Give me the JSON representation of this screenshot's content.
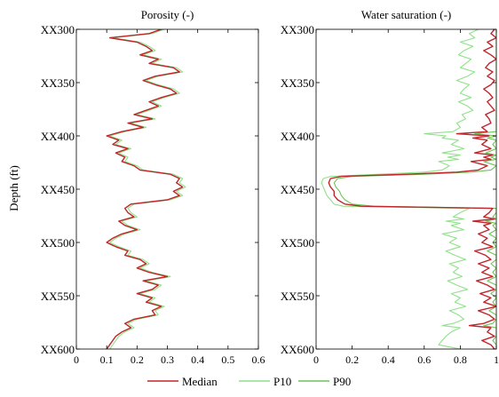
{
  "ylabel": "Depth (ft)",
  "legend": {
    "items": [
      {
        "name": "Median",
        "color": "#c0262c"
      },
      {
        "name": "P10",
        "color": "#8fe18a"
      },
      {
        "name": "P90",
        "color": "#6fc45a"
      }
    ],
    "placement": "bottom-center"
  },
  "chart_data": [
    {
      "type": "line",
      "title": "Porosity (-)",
      "xlabel": "",
      "ylabel": "Depth (ft)",
      "xlim": [
        0,
        0.6
      ],
      "ylim": [
        600,
        300
      ],
      "xticks": [
        0,
        0.1,
        0.2,
        0.3,
        0.4,
        0.5,
        0.6
      ],
      "xtick_labels": [
        "0",
        "0.1",
        "0.2",
        "0.3",
        "0.4",
        "0.5",
        "0.6"
      ],
      "yticks": [
        300,
        350,
        400,
        450,
        500,
        550,
        600
      ],
      "ytick_labels": [
        "XX300",
        "XX350",
        "XX400",
        "XX450",
        "XX500",
        "XX550",
        "XX600"
      ],
      "grid": false,
      "depth": [
        300,
        304,
        308,
        312,
        316,
        320,
        324,
        328,
        332,
        336,
        340,
        344,
        348,
        352,
        356,
        360,
        364,
        368,
        372,
        376,
        380,
        384,
        388,
        392,
        396,
        400,
        404,
        408,
        412,
        416,
        420,
        424,
        428,
        432,
        436,
        440,
        444,
        448,
        452,
        456,
        460,
        464,
        468,
        472,
        476,
        480,
        484,
        488,
        492,
        496,
        500,
        504,
        508,
        512,
        516,
        520,
        524,
        528,
        532,
        536,
        540,
        544,
        548,
        552,
        556,
        560,
        564,
        568,
        572,
        576,
        580,
        584,
        588,
        592,
        596,
        600
      ],
      "series": [
        {
          "name": "Median",
          "color": "#c0262c",
          "values": [
            0.28,
            0.24,
            0.11,
            0.2,
            0.23,
            0.25,
            0.21,
            0.27,
            0.24,
            0.32,
            0.34,
            0.26,
            0.22,
            0.26,
            0.31,
            0.33,
            0.28,
            0.24,
            0.27,
            0.23,
            0.19,
            0.25,
            0.17,
            0.22,
            0.15,
            0.1,
            0.14,
            0.12,
            0.17,
            0.13,
            0.16,
            0.15,
            0.19,
            0.21,
            0.31,
            0.34,
            0.33,
            0.35,
            0.32,
            0.34,
            0.3,
            0.18,
            0.16,
            0.17,
            0.19,
            0.14,
            0.16,
            0.2,
            0.15,
            0.12,
            0.1,
            0.13,
            0.17,
            0.16,
            0.21,
            0.23,
            0.2,
            0.24,
            0.3,
            0.22,
            0.27,
            0.25,
            0.2,
            0.25,
            0.23,
            0.28,
            0.25,
            0.26,
            0.19,
            0.16,
            0.18,
            0.15,
            0.13,
            0.12,
            0.11,
            0.1
          ]
        },
        {
          "name": "P10",
          "color": "#8fe18a",
          "values": [
            0.29,
            0.25,
            0.12,
            0.21,
            0.24,
            0.26,
            0.22,
            0.28,
            0.25,
            0.33,
            0.35,
            0.27,
            0.23,
            0.27,
            0.32,
            0.34,
            0.29,
            0.25,
            0.28,
            0.24,
            0.2,
            0.26,
            0.18,
            0.23,
            0.16,
            0.11,
            0.15,
            0.13,
            0.18,
            0.14,
            0.17,
            0.16,
            0.2,
            0.22,
            0.32,
            0.35,
            0.34,
            0.36,
            0.33,
            0.35,
            0.31,
            0.19,
            0.17,
            0.18,
            0.2,
            0.15,
            0.17,
            0.21,
            0.16,
            0.13,
            0.11,
            0.14,
            0.18,
            0.17,
            0.22,
            0.24,
            0.21,
            0.25,
            0.31,
            0.23,
            0.28,
            0.26,
            0.21,
            0.26,
            0.24,
            0.29,
            0.26,
            0.27,
            0.2,
            0.17,
            0.19,
            0.16,
            0.14,
            0.13,
            0.12,
            0.11
          ]
        },
        {
          "name": "P90",
          "color": "#6fc45a",
          "values": [
            0.28,
            0.24,
            0.11,
            0.2,
            0.23,
            0.25,
            0.21,
            0.27,
            0.24,
            0.32,
            0.34,
            0.26,
            0.22,
            0.26,
            0.31,
            0.33,
            0.28,
            0.24,
            0.27,
            0.23,
            0.19,
            0.25,
            0.17,
            0.22,
            0.15,
            0.1,
            0.14,
            0.12,
            0.17,
            0.13,
            0.16,
            0.15,
            0.19,
            0.21,
            0.31,
            0.34,
            0.33,
            0.35,
            0.32,
            0.34,
            0.3,
            0.18,
            0.16,
            0.17,
            0.19,
            0.14,
            0.16,
            0.2,
            0.15,
            0.12,
            0.1,
            0.13,
            0.17,
            0.16,
            0.21,
            0.23,
            0.2,
            0.24,
            0.3,
            0.22,
            0.27,
            0.25,
            0.2,
            0.25,
            0.23,
            0.28,
            0.25,
            0.26,
            0.19,
            0.16,
            0.18,
            0.15,
            0.13,
            0.12,
            0.11,
            0.1
          ]
        }
      ]
    },
    {
      "type": "line",
      "title": "Water saturation (-)",
      "xlabel": "",
      "ylabel": "",
      "xlim": [
        0,
        1
      ],
      "ylim": [
        600,
        300
      ],
      "xticks": [
        0,
        0.2,
        0.4,
        0.6,
        0.8,
        1
      ],
      "xtick_labels": [
        "0",
        "0.2",
        "0.4",
        "0.6",
        "0.8",
        "1"
      ],
      "yticks": [
        300,
        350,
        400,
        450,
        500,
        550,
        600
      ],
      "ytick_labels": [
        "XX300",
        "XX350",
        "XX400",
        "XX450",
        "XX500",
        "XX550",
        "XX600"
      ],
      "grid": false,
      "depth": [
        300,
        304,
        308,
        312,
        316,
        320,
        324,
        328,
        332,
        336,
        340,
        344,
        348,
        352,
        356,
        360,
        364,
        368,
        372,
        376,
        380,
        384,
        388,
        392,
        396,
        398,
        400,
        402,
        404,
        408,
        412,
        416,
        418,
        420,
        422,
        424,
        428,
        432,
        434,
        436,
        438,
        440,
        444,
        448,
        452,
        456,
        460,
        464,
        466,
        468,
        472,
        476,
        478,
        480,
        482,
        484,
        488,
        492,
        496,
        500,
        504,
        508,
        512,
        516,
        520,
        524,
        528,
        532,
        536,
        540,
        544,
        548,
        552,
        556,
        560,
        564,
        568,
        572,
        576,
        578,
        580,
        584,
        588,
        592,
        596,
        600
      ],
      "series": [
        {
          "name": "Median",
          "color": "#c0262c",
          "values": [
            0.99,
            0.97,
            1.0,
            0.95,
            0.98,
            0.93,
            0.97,
            1.0,
            0.96,
            0.94,
            0.98,
            0.95,
            0.99,
            0.97,
            0.93,
            0.96,
            0.98,
            0.95,
            0.97,
            0.99,
            0.94,
            0.96,
            0.97,
            0.92,
            0.95,
            0.78,
            0.96,
            0.87,
            0.95,
            0.92,
            0.97,
            0.88,
            0.98,
            0.93,
            0.97,
            0.86,
            0.95,
            0.9,
            0.78,
            0.5,
            0.14,
            0.08,
            0.07,
            0.08,
            0.1,
            0.1,
            0.12,
            0.16,
            0.25,
            0.98,
            0.96,
            0.93,
            0.99,
            0.87,
            0.97,
            0.93,
            0.96,
            0.9,
            0.95,
            0.92,
            0.98,
            0.88,
            0.94,
            0.97,
            0.9,
            0.96,
            0.92,
            0.98,
            0.89,
            0.95,
            0.99,
            0.91,
            0.97,
            0.93,
            1.0,
            0.9,
            0.96,
            0.99,
            0.93,
            0.85,
            0.97,
            0.95,
            0.99,
            0.92,
            0.97,
            0.99
          ]
        },
        {
          "name": "P10",
          "color": "#8fe18a",
          "values": [
            0.9,
            0.85,
            0.88,
            0.8,
            0.87,
            0.82,
            0.79,
            0.86,
            0.83,
            0.8,
            0.88,
            0.84,
            0.78,
            0.85,
            0.82,
            0.8,
            0.86,
            0.79,
            0.84,
            0.87,
            0.81,
            0.83,
            0.78,
            0.8,
            0.76,
            0.6,
            0.72,
            0.7,
            0.79,
            0.75,
            0.82,
            0.7,
            0.8,
            0.73,
            0.79,
            0.68,
            0.74,
            0.7,
            0.6,
            0.35,
            0.08,
            0.04,
            0.03,
            0.04,
            0.05,
            0.06,
            0.08,
            0.1,
            0.15,
            0.85,
            0.8,
            0.76,
            0.82,
            0.72,
            0.8,
            0.75,
            0.82,
            0.7,
            0.78,
            0.74,
            0.8,
            0.72,
            0.77,
            0.83,
            0.74,
            0.79,
            0.76,
            0.81,
            0.73,
            0.78,
            0.84,
            0.75,
            0.8,
            0.77,
            0.83,
            0.74,
            0.79,
            0.82,
            0.76,
            0.7,
            0.8,
            0.75,
            0.72,
            0.7,
            0.68,
            0.8
          ]
        },
        {
          "name": "P90",
          "color": "#6fc45a",
          "values": [
            1.0,
            1.0,
            1.0,
            1.0,
            1.0,
            1.0,
            1.0,
            1.0,
            1.0,
            1.0,
            1.0,
            1.0,
            1.0,
            1.0,
            1.0,
            1.0,
            1.0,
            1.0,
            1.0,
            1.0,
            1.0,
            1.0,
            1.0,
            1.0,
            1.0,
            0.88,
            1.0,
            0.95,
            1.0,
            0.98,
            1.0,
            0.94,
            1.0,
            0.97,
            1.0,
            0.93,
            1.0,
            0.97,
            0.86,
            0.6,
            0.2,
            0.12,
            0.1,
            0.11,
            0.13,
            0.14,
            0.16,
            0.2,
            0.32,
            1.0,
            1.0,
            0.98,
            1.0,
            0.94,
            1.0,
            0.98,
            1.0,
            0.96,
            1.0,
            0.98,
            1.0,
            0.95,
            1.0,
            1.0,
            0.97,
            1.0,
            0.98,
            1.0,
            0.95,
            1.0,
            1.0,
            0.97,
            1.0,
            0.98,
            1.0,
            0.96,
            1.0,
            1.0,
            0.98,
            0.93,
            1.0,
            1.0,
            1.0,
            0.98,
            1.0,
            1.0
          ]
        }
      ]
    }
  ]
}
